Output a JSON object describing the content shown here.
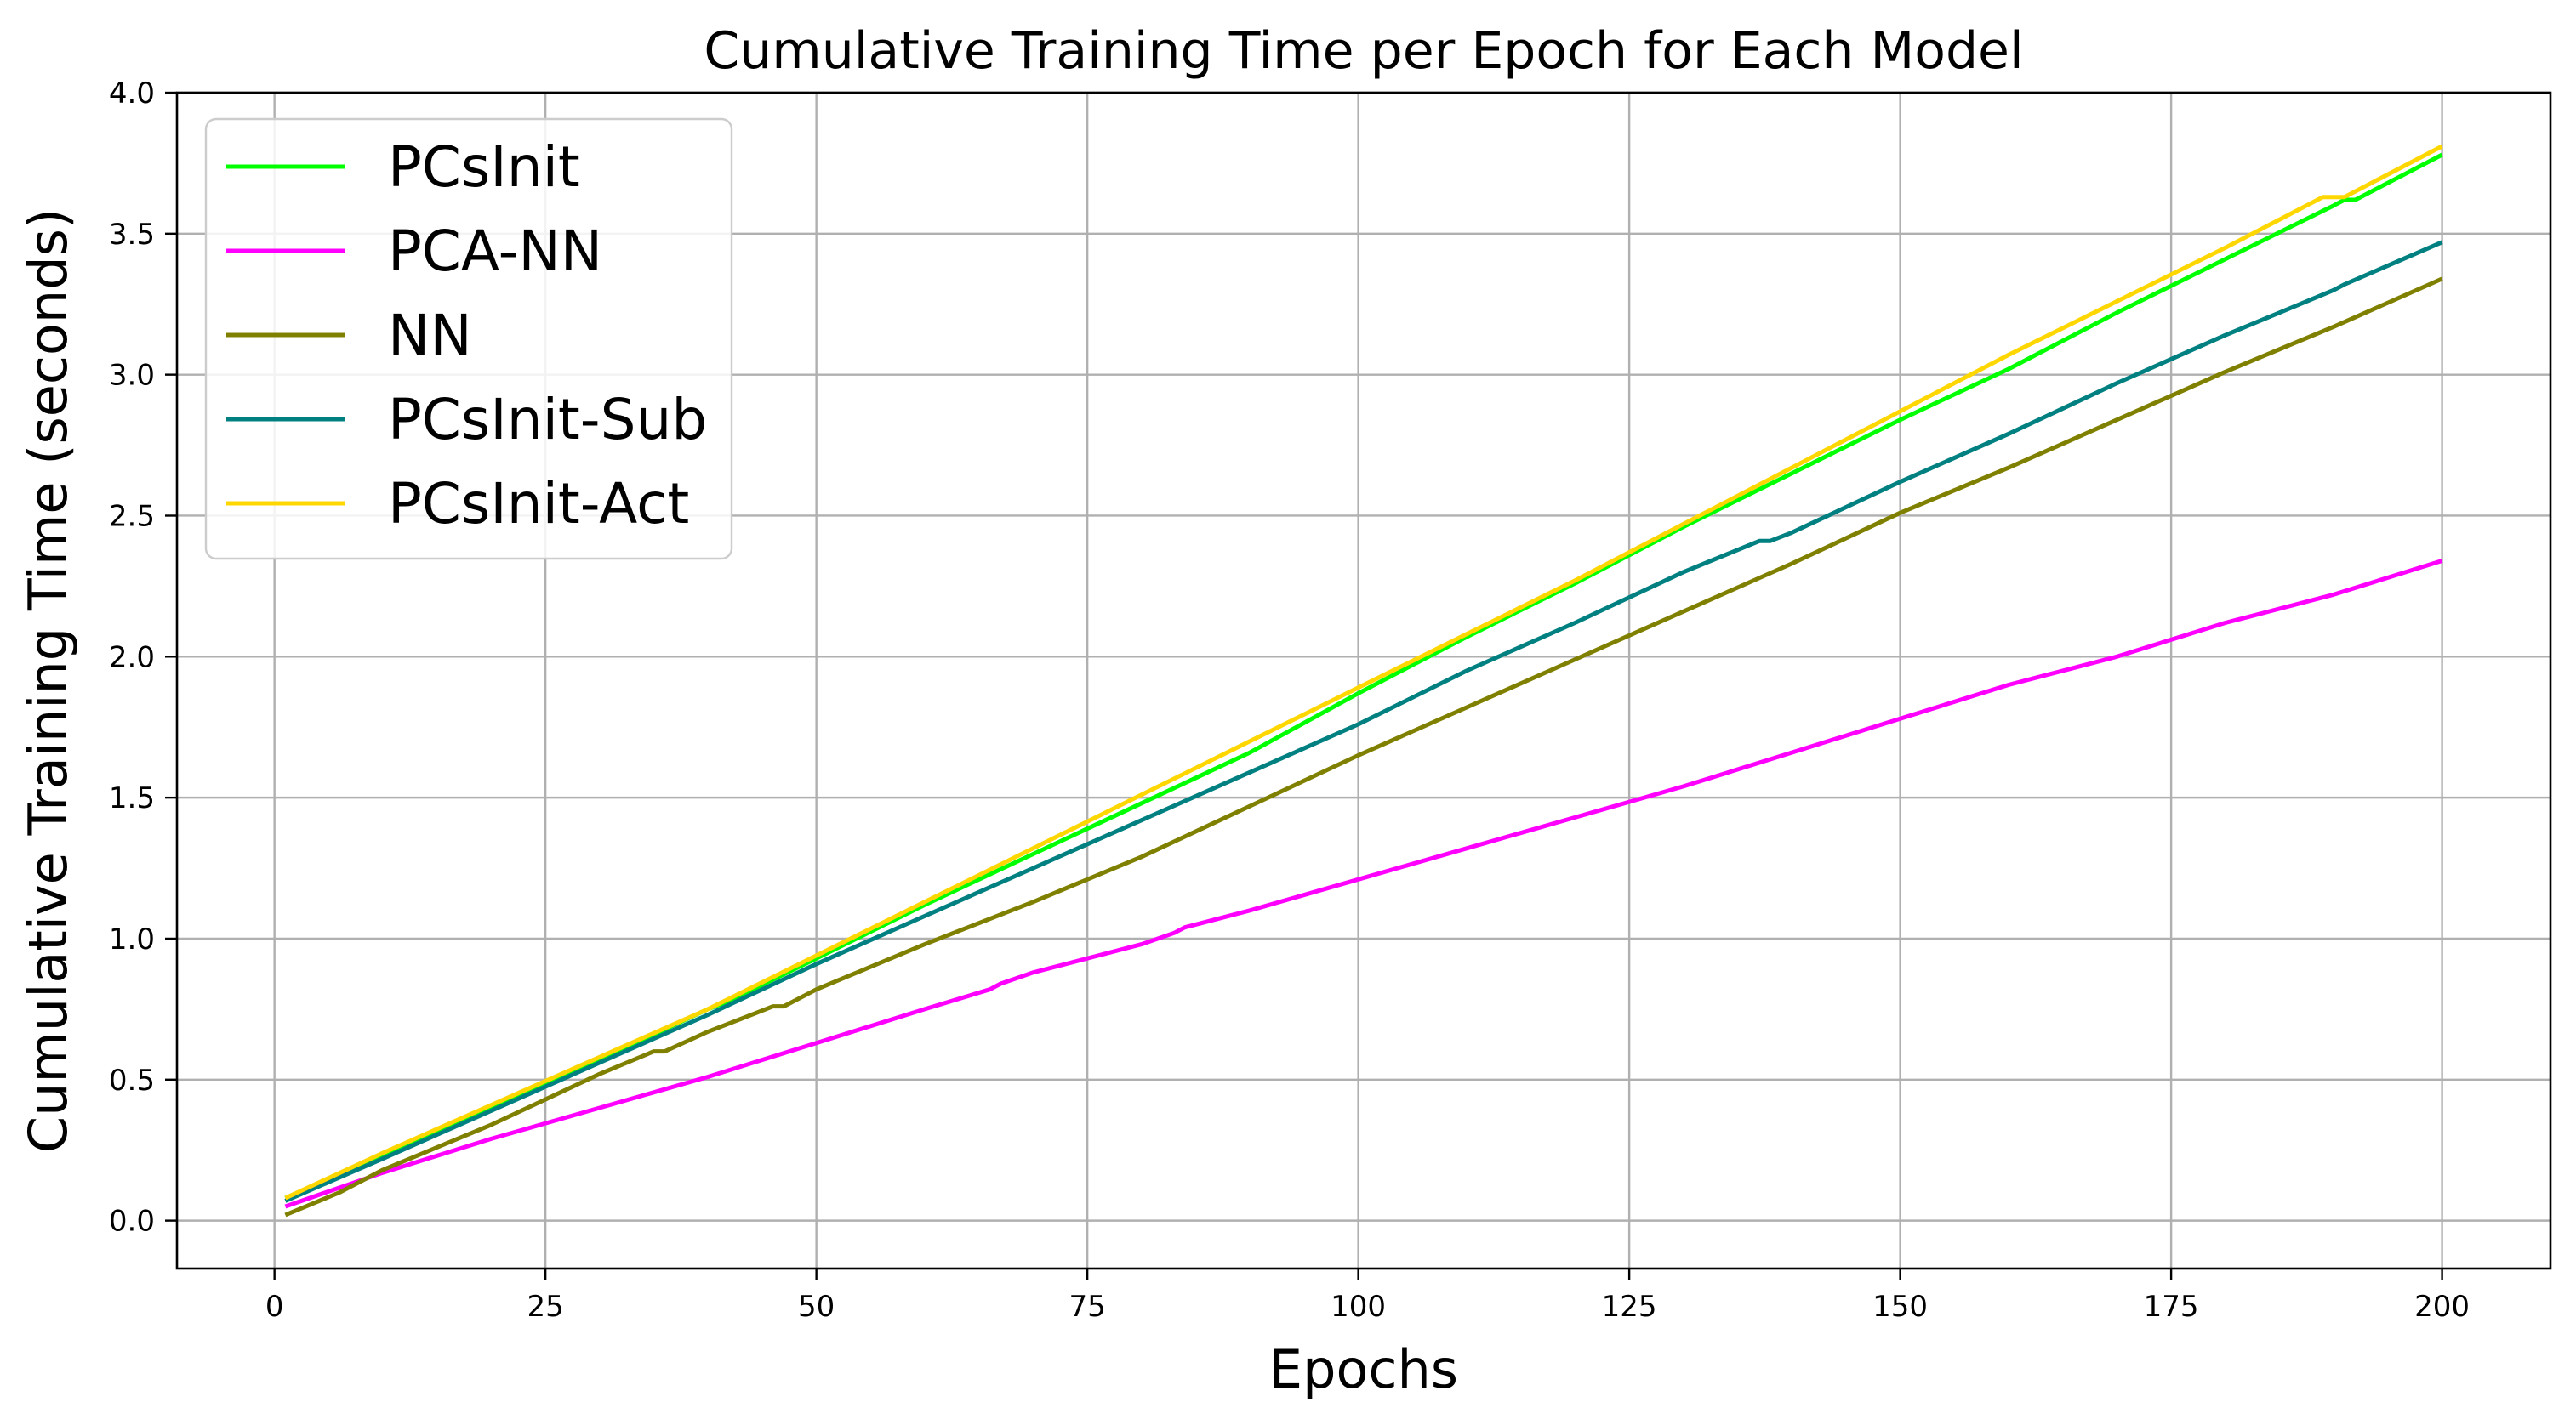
{
  "chart_data": {
    "type": "line",
    "title": "Cumulative Training Time per Epoch for Each Model",
    "xlabel": "Epochs",
    "ylabel": "Cumulative Training Time (seconds)",
    "xlim": [
      -9,
      210
    ],
    "ylim": [
      -0.17,
      4.0
    ],
    "xticks": [
      0,
      25,
      50,
      75,
      100,
      125,
      150,
      175,
      200
    ],
    "yticks": [
      0.0,
      0.5,
      1.0,
      1.5,
      2.0,
      2.5,
      3.0,
      3.5,
      4.0
    ],
    "xtick_labels": [
      "0",
      "25",
      "50",
      "75",
      "100",
      "125",
      "150",
      "175",
      "200"
    ],
    "ytick_labels": [
      "0.0",
      "0.5",
      "1.0",
      "1.5",
      "2.0",
      "2.5",
      "3.0",
      "3.5",
      "4.0"
    ],
    "grid": true,
    "legend_position": "upper-left",
    "series": [
      {
        "name": "PCsInit",
        "color": "#00ff00",
        "x": [
          1,
          10,
          20,
          30,
          40,
          42,
          50,
          60,
          70,
          80,
          90,
          100,
          110,
          120,
          130,
          140,
          150,
          160,
          170,
          180,
          190,
          191,
          192,
          200
        ],
        "y": [
          0.08,
          0.23,
          0.4,
          0.57,
          0.75,
          0.78,
          0.93,
          1.12,
          1.3,
          1.48,
          1.66,
          1.87,
          2.07,
          2.26,
          2.46,
          2.65,
          2.84,
          3.02,
          3.22,
          3.41,
          3.6,
          3.62,
          3.62,
          3.78
        ]
      },
      {
        "name": "PCA-NN",
        "color": "#ff00ff",
        "x": [
          1,
          10,
          20,
          30,
          40,
          50,
          60,
          66,
          67,
          70,
          80,
          83,
          84,
          90,
          100,
          110,
          120,
          130,
          140,
          150,
          160,
          164,
          165,
          170,
          180,
          181,
          182,
          190,
          200
        ],
        "y": [
          0.05,
          0.17,
          0.29,
          0.4,
          0.51,
          0.63,
          0.75,
          0.82,
          0.84,
          0.88,
          0.98,
          1.02,
          1.04,
          1.1,
          1.21,
          1.32,
          1.43,
          1.54,
          1.66,
          1.78,
          1.9,
          1.94,
          1.95,
          2.0,
          2.12,
          2.13,
          2.14,
          2.22,
          2.34
        ]
      },
      {
        "name": "NN",
        "color": "#808000",
        "x": [
          1,
          6,
          10,
          20,
          30,
          35,
          36,
          40,
          46,
          47,
          50,
          60,
          70,
          80,
          90,
          100,
          110,
          120,
          130,
          140,
          150,
          160,
          170,
          180,
          190,
          200
        ],
        "y": [
          0.02,
          0.1,
          0.18,
          0.34,
          0.52,
          0.6,
          0.6,
          0.67,
          0.76,
          0.76,
          0.82,
          0.98,
          1.13,
          1.29,
          1.47,
          1.65,
          1.82,
          1.99,
          2.16,
          2.33,
          2.51,
          2.67,
          2.84,
          3.01,
          3.17,
          3.34
        ]
      },
      {
        "name": "PCsInit-Sub",
        "color": "#008080",
        "x": [
          1,
          10,
          20,
          30,
          40,
          50,
          60,
          70,
          80,
          90,
          100,
          110,
          120,
          130,
          137,
          138,
          140,
          150,
          160,
          170,
          180,
          190,
          191,
          200
        ],
        "y": [
          0.07,
          0.22,
          0.39,
          0.56,
          0.73,
          0.91,
          1.08,
          1.25,
          1.42,
          1.59,
          1.76,
          1.95,
          2.12,
          2.3,
          2.41,
          2.41,
          2.44,
          2.62,
          2.79,
          2.97,
          3.14,
          3.3,
          3.32,
          3.47
        ]
      },
      {
        "name": "PCsInit-Act",
        "color": "#ffd700",
        "x": [
          1,
          10,
          20,
          30,
          40,
          50,
          60,
          70,
          80,
          90,
          100,
          110,
          120,
          130,
          140,
          150,
          160,
          170,
          180,
          189,
          191,
          200
        ],
        "y": [
          0.08,
          0.24,
          0.41,
          0.58,
          0.75,
          0.94,
          1.13,
          1.32,
          1.51,
          1.7,
          1.89,
          2.08,
          2.27,
          2.47,
          2.67,
          2.87,
          3.07,
          3.26,
          3.45,
          3.63,
          3.63,
          3.81
        ]
      }
    ]
  }
}
